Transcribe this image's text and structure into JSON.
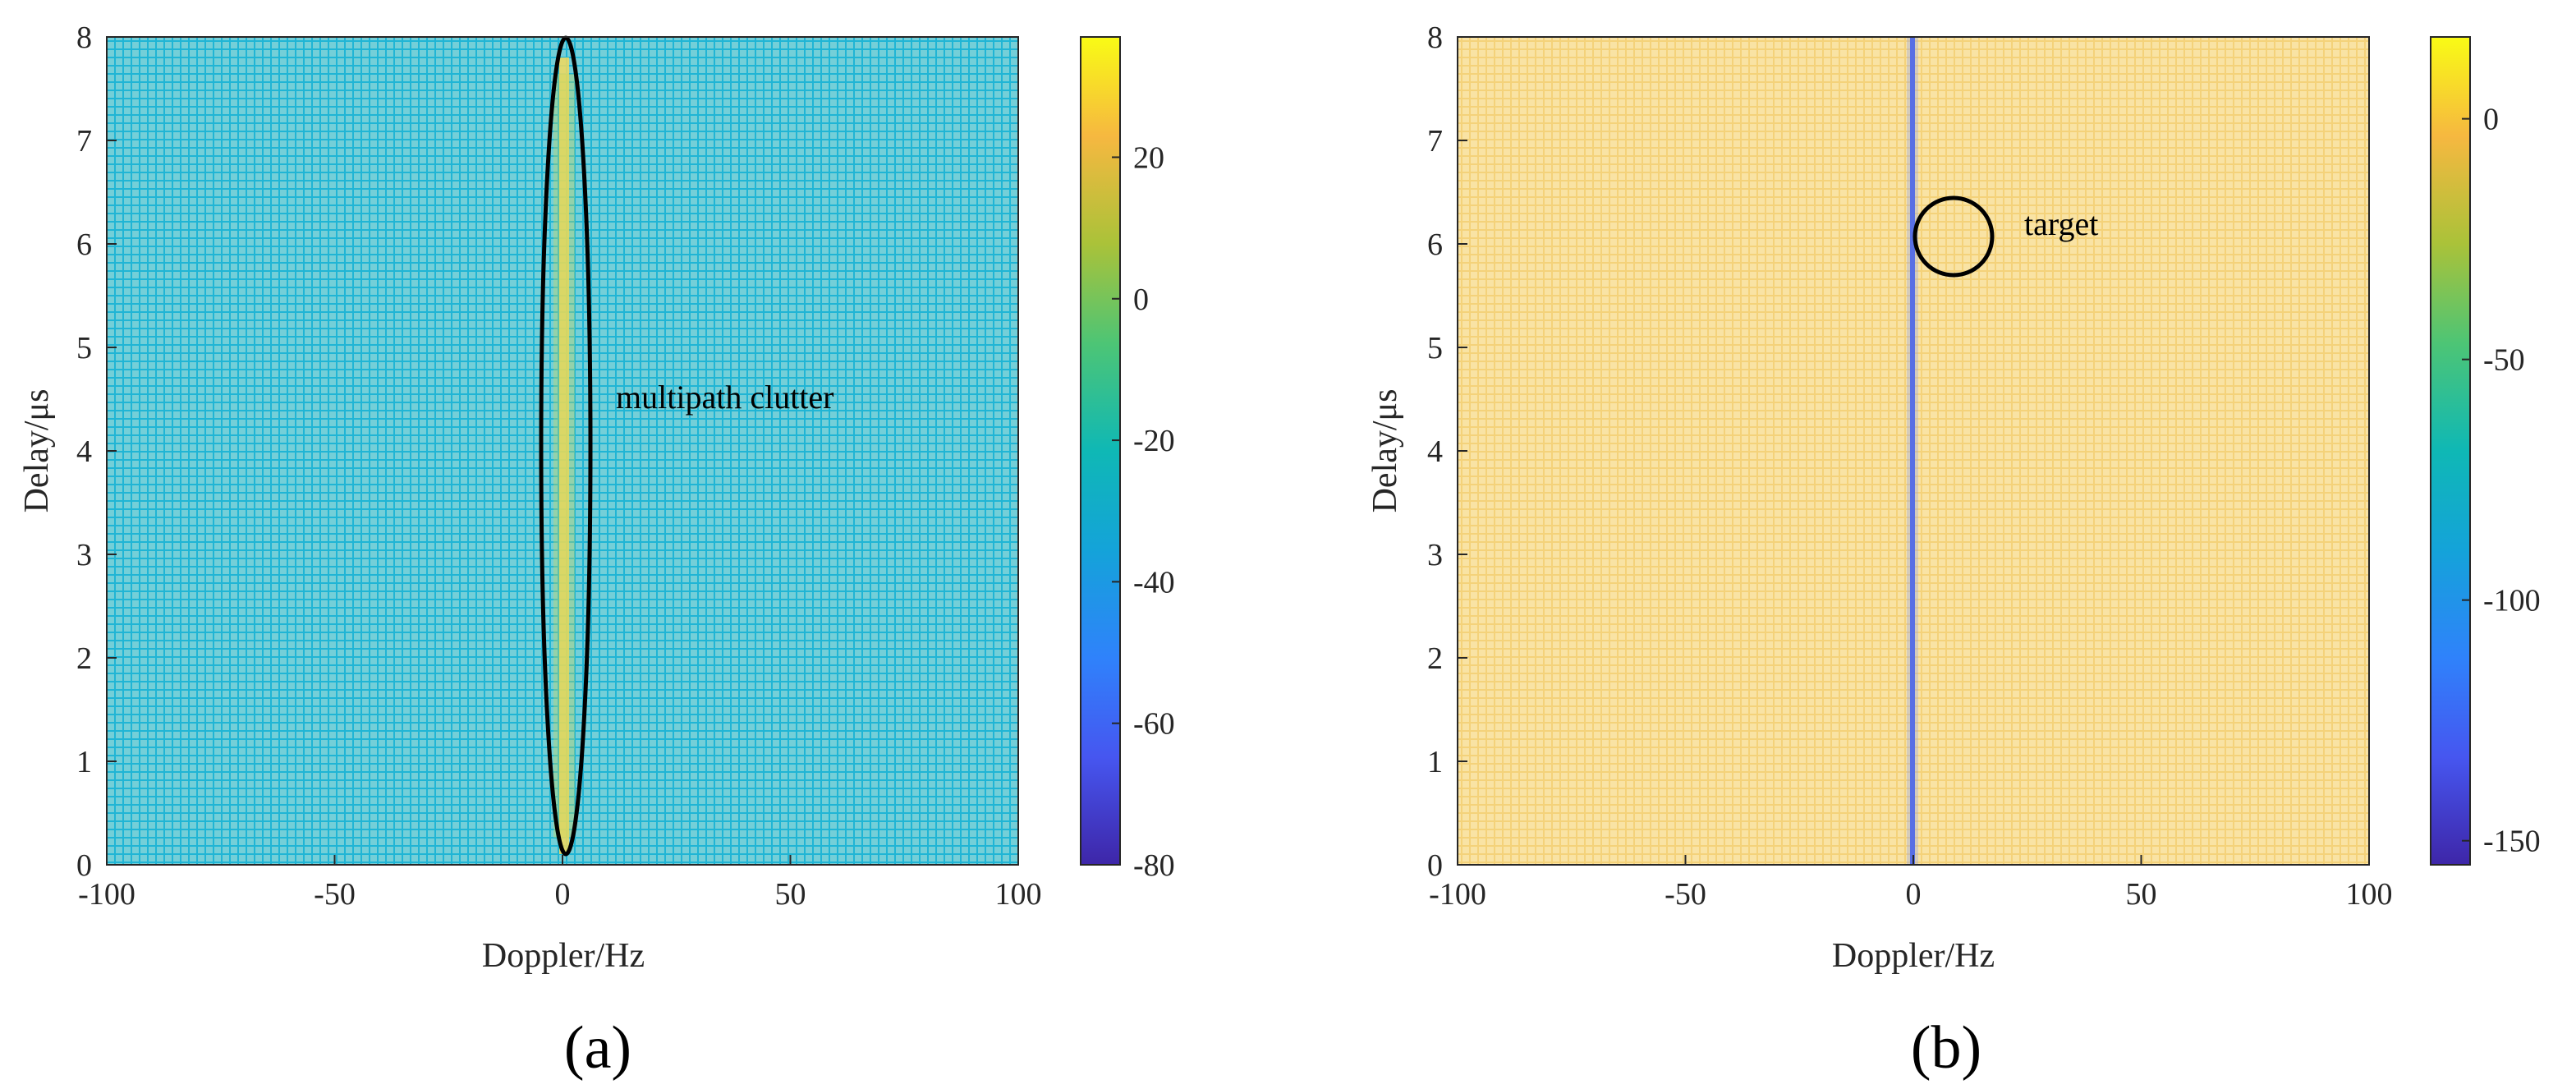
{
  "chart_data": [
    {
      "type": "heatmap",
      "panel_label": "(a)",
      "xlabel": "Doppler/Hz",
      "ylabel": "Delay/μs",
      "xlim": [
        -100,
        100
      ],
      "ylim": [
        0,
        8
      ],
      "x_ticks": [
        -100,
        -50,
        0,
        50,
        100
      ],
      "y_ticks": [
        0,
        1,
        2,
        3,
        4,
        5,
        6,
        7,
        8
      ],
      "colorbar": {
        "range": [
          -80,
          37
        ],
        "ticks": [
          -80,
          -60,
          -40,
          -20,
          0,
          20
        ]
      },
      "background_level": -25,
      "ridge": {
        "doppler": 0,
        "delay_range": [
          0,
          8
        ],
        "level": 28
      },
      "annotation": {
        "text": "multipath clutter",
        "shape": "ellipse",
        "center": [
          0,
          4.05
        ],
        "radius_x": 5.5,
        "radius_y": 3.95
      },
      "colormap": "parula"
    },
    {
      "type": "heatmap",
      "panel_label": "(b)",
      "xlabel": "Doppler/Hz",
      "ylabel": "Delay/μs",
      "xlim": [
        -100,
        100
      ],
      "ylim": [
        0,
        8
      ],
      "x_ticks": [
        -100,
        -50,
        0,
        50,
        100
      ],
      "y_ticks": [
        0,
        1,
        2,
        3,
        4,
        5,
        6,
        7,
        8
      ],
      "colorbar": {
        "range": [
          -155,
          17
        ],
        "ticks": [
          -150,
          -100,
          -50,
          0
        ]
      },
      "background_level": 5,
      "notch": {
        "doppler": 0,
        "delay_range": [
          0,
          8
        ],
        "level": -110
      },
      "annotation": {
        "text": "target",
        "shape": "circle",
        "center": [
          8,
          6.1
        ],
        "radius_x": 8.5,
        "radius_y": 0.38
      },
      "colormap": "parula"
    }
  ]
}
